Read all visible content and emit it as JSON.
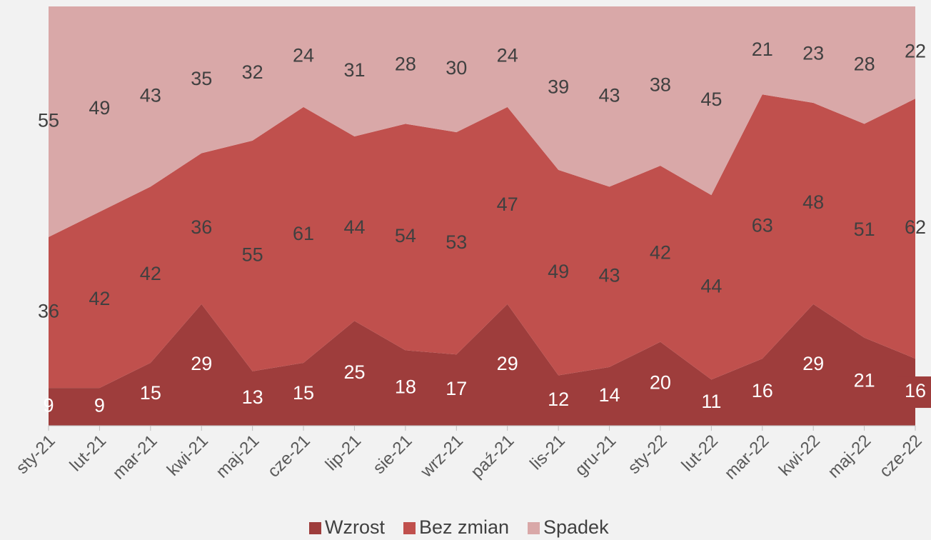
{
  "chart_data": {
    "type": "stacked_area",
    "categories": [
      "sty-21",
      "lut-21",
      "mar-21",
      "kwi-21",
      "maj-21",
      "cze-21",
      "lip-21",
      "sie-21",
      "wrz-21",
      "paź-21",
      "lis-21",
      "gru-21",
      "sty-22",
      "lut-22",
      "mar-22",
      "kwi-22",
      "maj-22",
      "cze-22"
    ],
    "series": [
      {
        "name": "Wzrost",
        "color": "#9e3d3c",
        "label_color": "#ffffff",
        "values": [
          9,
          9,
          15,
          29,
          13,
          15,
          25,
          18,
          17,
          29,
          12,
          14,
          20,
          11,
          16,
          29,
          21,
          16
        ]
      },
      {
        "name": "Bez zmian",
        "color": "#c0504d",
        "label_color": "#404040",
        "values": [
          36,
          42,
          42,
          36,
          55,
          61,
          44,
          54,
          53,
          47,
          49,
          43,
          42,
          44,
          63,
          48,
          51,
          62
        ]
      },
      {
        "name": "Spadek",
        "color": "#d9a8a8",
        "label_color": "#404040",
        "values": [
          55,
          49,
          43,
          35,
          32,
          24,
          31,
          28,
          30,
          24,
          39,
          43,
          38,
          45,
          21,
          23,
          28,
          22
        ]
      }
    ],
    "ylim": [
      0,
      100
    ],
    "legend": "bottom"
  }
}
